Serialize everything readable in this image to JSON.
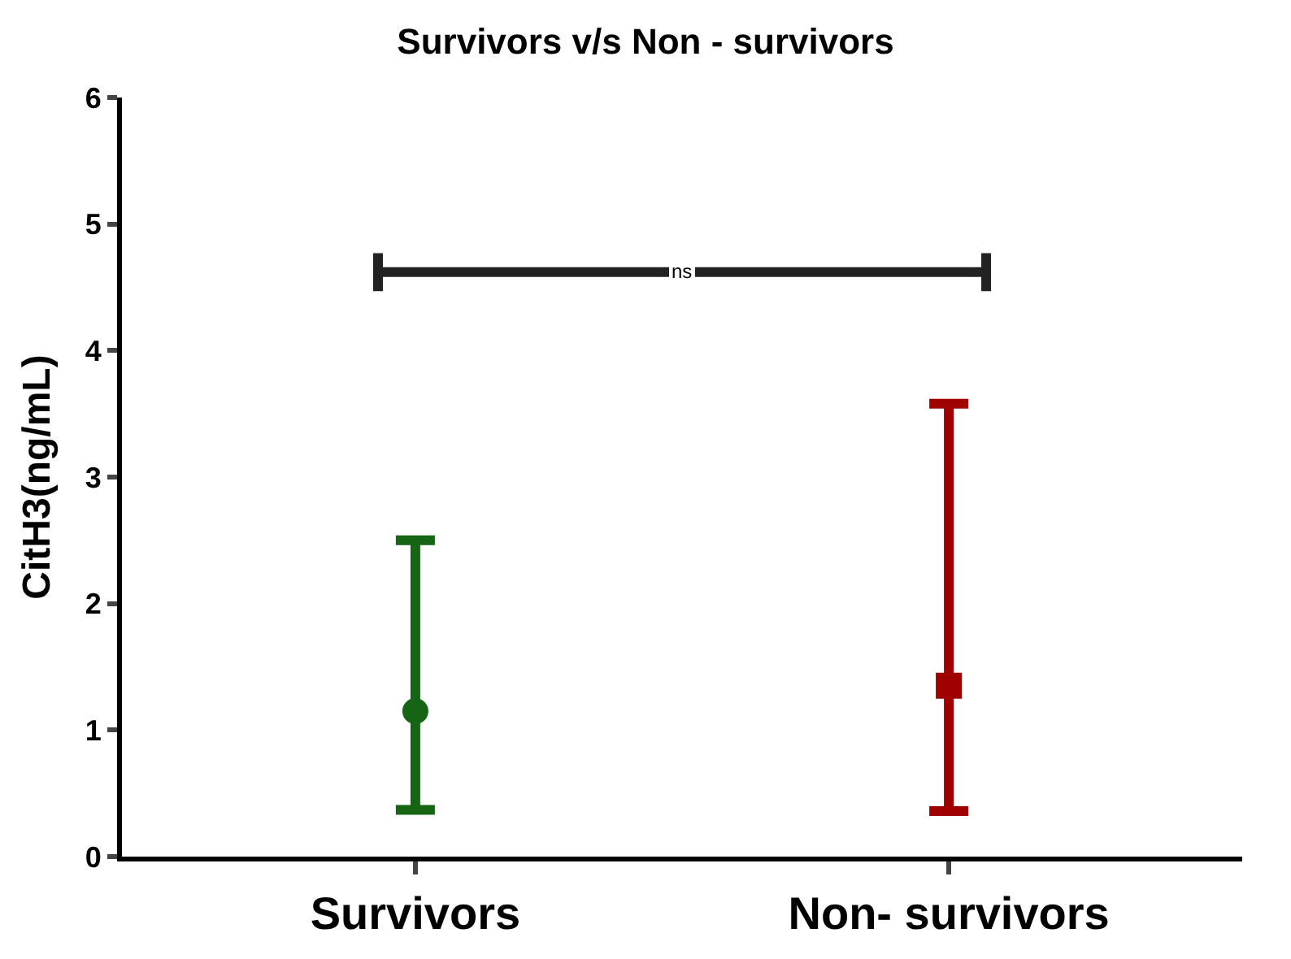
{
  "chart_data": {
    "type": "scatter",
    "title": "Survivors v/s Non - survivors",
    "ylabel": "CitH3(ng/mL)",
    "categories": [
      "Survivors",
      "Non- survivors"
    ],
    "series": [
      {
        "color": "#156515",
        "marker": "circle",
        "values": [
          1.15,
          null
        ],
        "errors": [
          [
            0.37,
            2.5
          ],
          null
        ]
      },
      {
        "color": "#a10000",
        "marker": "square",
        "values": [
          null,
          1.35
        ],
        "errors": [
          null,
          [
            0.36,
            3.58
          ]
        ]
      }
    ],
    "ylim": [
      0,
      6
    ],
    "yticks": [
      0,
      1,
      2,
      3,
      4,
      5,
      6
    ],
    "grid": false,
    "annotations": [
      {
        "text": "ns",
        "y": 4.62
      }
    ]
  }
}
